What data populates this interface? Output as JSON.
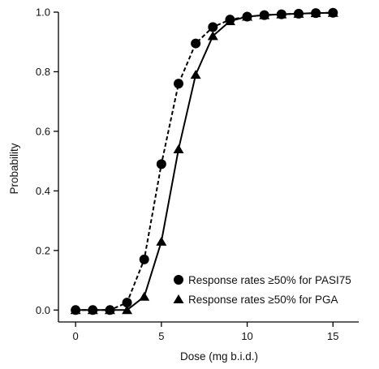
{
  "chart_data": {
    "type": "line",
    "xlabel": "Dose (mg b.i.d.)",
    "ylabel": "Probability",
    "xlim": [
      -1,
      16.5
    ],
    "ylim": [
      -0.04,
      1.0
    ],
    "xticks": [
      0,
      5,
      10,
      15
    ],
    "yticks": [
      0.0,
      0.2,
      0.4,
      0.6,
      0.8,
      1.0
    ],
    "xtick_labels": [
      "0",
      "5",
      "10",
      "15"
    ],
    "ytick_labels": [
      "0.0",
      "0.2",
      "0.4",
      "0.6",
      "0.8",
      "1.0"
    ],
    "grid": false,
    "legend_position": "bottom-right",
    "series": [
      {
        "name": "Response rates ≥50% for PASI75",
        "marker": "circle",
        "line_style": "dashed",
        "color": "#000000",
        "x": [
          0,
          1,
          2,
          3,
          4,
          5,
          6,
          7,
          8,
          9,
          10,
          11,
          12,
          13,
          14,
          15
        ],
        "y": [
          0.0,
          0.0,
          0.0,
          0.025,
          0.17,
          0.49,
          0.76,
          0.895,
          0.95,
          0.975,
          0.985,
          0.99,
          0.993,
          0.995,
          0.997,
          0.998
        ]
      },
      {
        "name": "Response rates ≥50% for PGA",
        "marker": "triangle",
        "line_style": "solid",
        "color": "#000000",
        "x": [
          0,
          1,
          2,
          3,
          4,
          5,
          6,
          7,
          8,
          9,
          10,
          11,
          12,
          13,
          14,
          15
        ],
        "y": [
          0.0,
          0.0,
          0.0,
          0.0,
          0.045,
          0.23,
          0.54,
          0.79,
          0.92,
          0.97,
          0.985,
          0.99,
          0.993,
          0.995,
          0.997,
          0.998
        ]
      }
    ]
  }
}
